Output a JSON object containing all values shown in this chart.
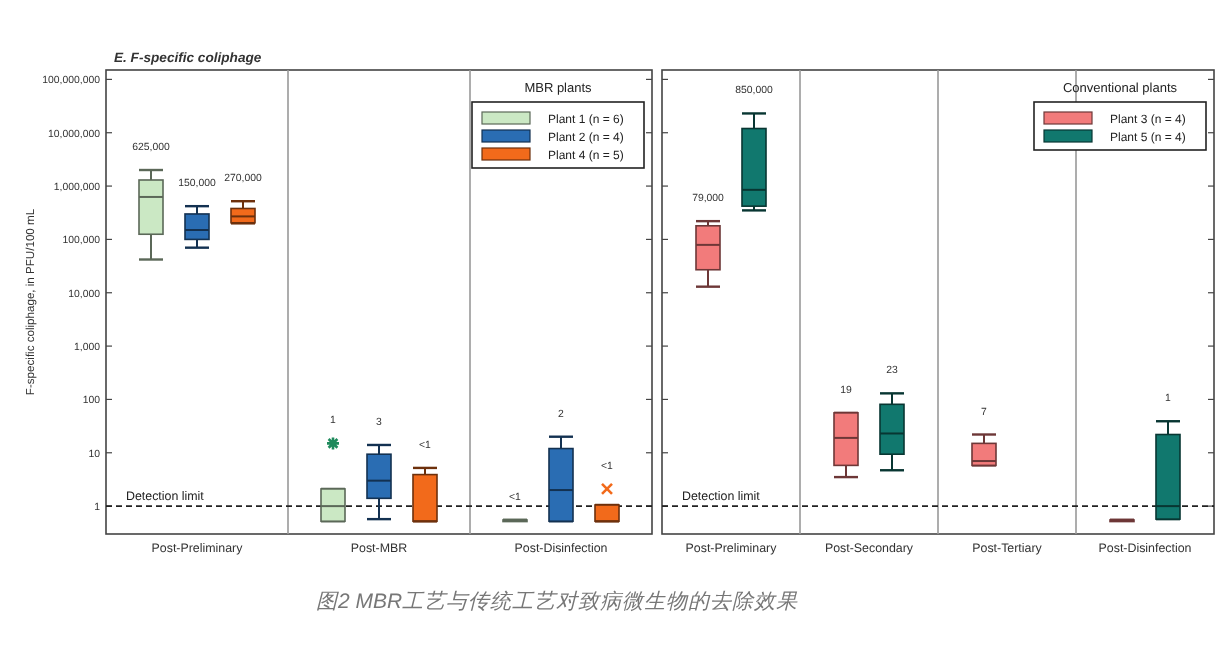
{
  "chart_data": [
    {
      "type": "box",
      "title": "E.  F-specific coliphage",
      "ylabel": "F-specific coliphage, in PFU/100 mL",
      "legend_title": "MBR plants",
      "legend": "top right",
      "log": "y",
      "categories": [
        "Post-Preliminary",
        "Post-MBR",
        "Post-Disinfection"
      ],
      "ylim": [
        0.3,
        150000000
      ],
      "yticks": [
        1,
        10,
        100,
        {
          "value": 1000,
          "label": "1,000"
        },
        {
          "value": 10000,
          "label": "10,000"
        },
        {
          "value": 100000,
          "label": "100,000"
        },
        {
          "value": 1000000,
          "label": "1,000,000"
        },
        {
          "value": 10000000,
          "label": "10,000,000"
        },
        {
          "value": 100000000,
          "label": "100,000,000"
        }
      ],
      "series": [
        {
          "name": "Plant 1 (n = 6)",
          "color": "#cbe8c4",
          "marker": "star",
          "boxes": [
            {
              "low": 42000,
              "q1": 125000,
              "median": 625000,
              "q3": 1300000,
              "high": 2000000
            },
            {
              "low": 0.52,
              "q1": 0.52,
              "median": 1,
              "q3": 2.1,
              "high": 2.1,
              "outliers": [
                15
              ]
            },
            {
              "low": 0.55,
              "q1": 0.55,
              "median": 0.55,
              "q3": 0.55,
              "high": 0.55
            }
          ]
        },
        {
          "name": "Plant 2 (n = 4)",
          "color": "#2a6db3",
          "boxes": [
            {
              "low": 70000,
              "q1": 100000,
              "median": 150000,
              "q3": 300000,
              "high": 420000
            },
            {
              "low": 0.57,
              "q1": 1.4,
              "median": 3,
              "q3": 9.4,
              "high": 14
            },
            {
              "low": 0.52,
              "q1": 0.52,
              "median": 2,
              "q3": 12,
              "high": 20
            }
          ]
        },
        {
          "name": "Plant 4 (n = 5)",
          "color": "#f26a1b",
          "marker": "cross",
          "boxes": [
            {
              "low": 200000,
              "q1": 205000,
              "median": 270000,
              "q3": 380000,
              "high": 520000
            },
            {
              "low": 0.52,
              "q1": 0.52,
              "median": 0.52,
              "q3": 3.9,
              "high": 5.2
            },
            {
              "low": 0.52,
              "q1": 0.52,
              "median": 0.52,
              "q3": 1.05,
              "high": 1.05,
              "outliers": [
                2.1
              ]
            }
          ]
        }
      ],
      "ref_lines": [
        {
          "axis": "y",
          "value": 1,
          "label": "Detection limit",
          "line_style": "dashed"
        }
      ],
      "annotations": [
        "625,000",
        "150,000",
        "270,000",
        "1",
        "3",
        "<1",
        "<1",
        "2",
        "<1",
        "图2 MBR工艺与传统工艺对致病微生物的去除效果"
      ]
    },
    {
      "type": "box",
      "legend_title": "Conventional plants",
      "legend": "top right",
      "log": "y",
      "tick_labels": "x",
      "categories": [
        "Post-Preliminary",
        "Post-Secondary",
        "Post-Tertiary",
        "Post-Disinfection"
      ],
      "ylim": [
        0.3,
        150000000
      ],
      "yticks": [
        {
          "value": 1,
          "label": null
        },
        {
          "value": 10,
          "label": null
        },
        {
          "value": 100,
          "label": null
        },
        {
          "value": 1000,
          "label": null
        },
        {
          "value": 10000,
          "label": null
        },
        {
          "value": 100000,
          "label": null
        },
        {
          "value": 1000000,
          "label": null
        },
        {
          "value": 10000000,
          "label": null
        },
        {
          "value": 100000000,
          "label": null
        }
      ],
      "series": [
        {
          "name": "Plant 3 (n = 4)",
          "color": "#f27b7b",
          "boxes": [
            {
              "low": 13000,
              "q1": 27000,
              "median": 79000,
              "q3": 180000,
              "high": 220000
            },
            {
              "low": 3.5,
              "q1": 5.8,
              "median": 19,
              "q3": 56,
              "high": 56
            },
            {
              "low": 5.8,
              "q1": 5.8,
              "median": 7,
              "q3": 15,
              "high": 22
            },
            {
              "low": 0.55,
              "q1": 0.55,
              "median": 0.55,
              "q3": 0.55,
              "high": 0.55
            }
          ]
        },
        {
          "name": "Plant 5 (n = 4)",
          "color": "#11786e",
          "boxes": [
            {
              "low": 350000,
              "q1": 420000,
              "median": 850000,
              "q3": 12000000,
              "high": 23000000
            },
            {
              "low": 4.7,
              "q1": 9.4,
              "median": 23,
              "q3": 81,
              "high": 130
            },
            null,
            {
              "low": 0.57,
              "q1": 0.57,
              "median": 1,
              "q3": 22,
              "high": 39
            }
          ]
        }
      ],
      "ref_lines": [
        {
          "axis": "y",
          "value": 1,
          "label": "Detection limit",
          "line_style": "dashed"
        }
      ],
      "annotations": [
        "79,000",
        "850,000",
        "19",
        "23",
        "7",
        "1"
      ]
    }
  ]
}
